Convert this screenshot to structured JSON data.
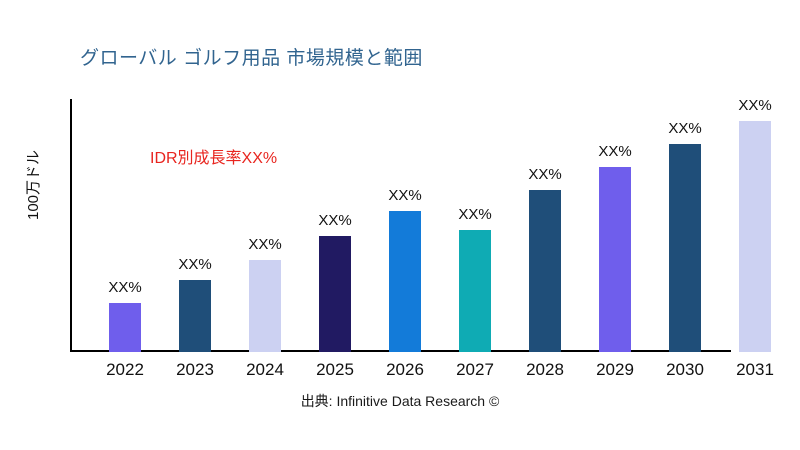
{
  "title": "グローバル ゴルフ用品 市場規模と範囲",
  "annotation": "IDR別成長率XX%",
  "y_axis_label": "100万ドル",
  "source": "出典: Infinitive Data Research ©",
  "colors": {
    "title": "#31648F",
    "annotation": "#E8251F",
    "axis": "#000000",
    "background": "#ffffff"
  },
  "chart_data": {
    "type": "bar",
    "title": "グローバル ゴルフ用品 市場規模と範囲",
    "xlabel": "",
    "ylabel": "100万ドル",
    "categories": [
      "2022",
      "2023",
      "2024",
      "2025",
      "2026",
      "2027",
      "2028",
      "2029",
      "2030",
      "2031"
    ],
    "values": [
      21,
      31,
      40,
      50,
      61,
      53,
      70,
      80,
      90,
      100
    ],
    "value_note": "relative bar heights; actual values masked as XX% on chart",
    "bar_labels": [
      "XX%",
      "XX%",
      "XX%",
      "XX%",
      "XX%",
      "XX%",
      "XX%",
      "XX%",
      "XX%",
      "XX%"
    ],
    "bar_colors": [
      "#6F5EEC",
      "#1F4E79",
      "#CCD1F2",
      "#211A62",
      "#137BD9",
      "#0FABB4",
      "#1F4E79",
      "#6F5EEC",
      "#1F4E79",
      "#CCD1F2"
    ],
    "annotation": "IDR別成長率XX%",
    "ylim": [
      0,
      100
    ],
    "grid": false,
    "legend": false
  }
}
